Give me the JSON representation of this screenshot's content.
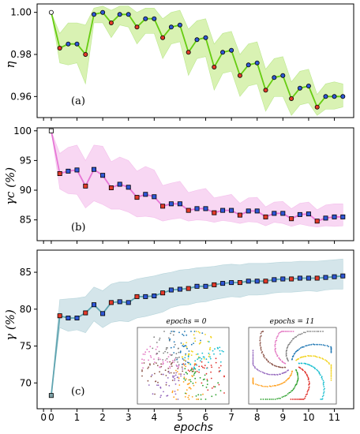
{
  "x_axis": {
    "label": "epochs",
    "ticks": [
      "0",
      "0",
      "1",
      "2",
      "3",
      "4",
      "5",
      "6",
      "7",
      "8",
      "9",
      "10",
      "11"
    ],
    "tick_values": [
      -0.3,
      0,
      1,
      2,
      3,
      4,
      5,
      6,
      7,
      8,
      9,
      10,
      11
    ]
  },
  "colors": {
    "panel_a_line": "#66cc11",
    "panel_a_band": "#d9f2b3",
    "panel_b_line": "#e777d6",
    "panel_b_band": "#f8d7f3",
    "panel_c_line": "#5fa4b0",
    "panel_c_band": "#d4e5ea",
    "marker_red": "#e33a2a",
    "marker_blue": "#2f57d6"
  },
  "chart_data": [
    {
      "type": "line",
      "panel_label": "(a)",
      "ylabel": "η",
      "ylim": [
        0.95,
        1.004
      ],
      "yticks": [
        "0.96",
        "0.98",
        "1.00"
      ],
      "ytick_values": [
        0.96,
        0.98,
        1.0
      ],
      "x": [
        0,
        0.33,
        0.66,
        1.0,
        1.33,
        1.66,
        2.0,
        2.33,
        2.66,
        3.0,
        3.33,
        3.66,
        4.0,
        4.33,
        4.66,
        5.0,
        5.33,
        5.66,
        6.0,
        6.33,
        6.66,
        7.0,
        7.33,
        7.66,
        8.0,
        8.33,
        8.66,
        9.0,
        9.33,
        9.66,
        10.0,
        10.33,
        10.66,
        11.0,
        11.33
      ],
      "series": [
        {
          "values": [
            1.0,
            0.983,
            0.985,
            0.985,
            0.98,
            0.999,
            1.0,
            0.995,
            0.999,
            0.999,
            0.993,
            0.997,
            0.997,
            0.988,
            0.993,
            0.994,
            0.981,
            0.987,
            0.988,
            0.974,
            0.981,
            0.982,
            0.97,
            0.975,
            0.976,
            0.963,
            0.969,
            0.97,
            0.959,
            0.964,
            0.965,
            0.955,
            0.96,
            0.96,
            0.96
          ],
          "low": [
            1.0,
            0.976,
            0.975,
            0.976,
            0.966,
            0.995,
            0.995,
            0.988,
            0.994,
            0.993,
            0.985,
            0.99,
            0.99,
            0.978,
            0.985,
            0.986,
            0.97,
            0.978,
            0.979,
            0.963,
            0.971,
            0.972,
            0.96,
            0.965,
            0.966,
            0.953,
            0.96,
            0.96,
            0.951,
            0.956,
            0.957,
            0.951,
            0.954,
            0.954,
            0.955
          ],
          "high": [
            1.0,
            0.99,
            0.995,
            0.995,
            0.994,
            1.002,
            1.003,
            1.001,
            1.003,
            1.003,
            1.0,
            1.002,
            1.002,
            0.997,
            1.0,
            1.001,
            0.992,
            0.996,
            0.997,
            0.985,
            0.99,
            0.991,
            0.98,
            0.985,
            0.986,
            0.973,
            0.978,
            0.979,
            0.967,
            0.972,
            0.973,
            0.961,
            0.966,
            0.967,
            0.966
          ],
          "marker_kinds": [
            "w",
            "r",
            "b",
            "b",
            "r",
            "b",
            "b",
            "r",
            "b",
            "b",
            "r",
            "b",
            "b",
            "r",
            "b",
            "b",
            "r",
            "b",
            "b",
            "r",
            "b",
            "b",
            "r",
            "b",
            "b",
            "r",
            "b",
            "b",
            "r",
            "b",
            "b",
            "r",
            "b",
            "b",
            "b"
          ]
        }
      ]
    },
    {
      "type": "line",
      "panel_label": "(b)",
      "ylabel": "γc (%)",
      "ylim": [
        81.5,
        100.5
      ],
      "yticks": [
        "85",
        "90",
        "95",
        "100"
      ],
      "ytick_values": [
        85,
        90,
        95,
        100
      ],
      "x": [
        0,
        0.33,
        0.66,
        1.0,
        1.33,
        1.66,
        2.0,
        2.33,
        2.66,
        3.0,
        3.33,
        3.66,
        4.0,
        4.33,
        4.66,
        5.0,
        5.33,
        5.66,
        6.0,
        6.33,
        6.66,
        7.0,
        7.33,
        7.66,
        8.0,
        8.33,
        8.66,
        9.0,
        9.33,
        9.66,
        10.0,
        10.33,
        10.66,
        11.0,
        11.33
      ],
      "series": [
        {
          "values": [
            100.0,
            92.8,
            93.2,
            93.4,
            90.7,
            93.5,
            92.5,
            90.4,
            91.0,
            90.5,
            88.8,
            89.3,
            88.9,
            87.3,
            87.7,
            87.7,
            86.6,
            86.9,
            86.9,
            86.2,
            86.6,
            86.6,
            85.8,
            86.5,
            86.5,
            85.5,
            86.1,
            86.1,
            85.2,
            85.9,
            86.0,
            84.8,
            85.3,
            85.5,
            85.5
          ],
          "low": [
            100.0,
            90.2,
            89.4,
            89.3,
            87.0,
            88.2,
            87.6,
            86.8,
            86.8,
            86.3,
            85.5,
            85.6,
            85.4,
            84.8,
            85.1,
            85.3,
            84.8,
            85.0,
            84.9,
            84.6,
            84.9,
            84.7,
            84.4,
            84.7,
            84.6,
            84.0,
            84.6,
            84.4,
            83.9,
            84.3,
            84.0,
            83.8,
            84.0,
            83.9,
            84.0
          ],
          "high": [
            100.0,
            96.2,
            97.2,
            97.6,
            95.0,
            97.6,
            97.4,
            94.8,
            95.6,
            95.0,
            93.2,
            94.0,
            93.4,
            90.8,
            91.2,
            91.5,
            89.6,
            90.0,
            90.3,
            88.7,
            89.0,
            89.3,
            87.8,
            88.7,
            88.8,
            87.2,
            88.0,
            88.1,
            86.9,
            87.8,
            88.0,
            86.7,
            87.5,
            87.7,
            87.7
          ],
          "marker_kinds": [
            "w",
            "r",
            "b",
            "b",
            "r",
            "b",
            "b",
            "r",
            "b",
            "b",
            "r",
            "b",
            "b",
            "r",
            "b",
            "b",
            "r",
            "b",
            "b",
            "r",
            "b",
            "b",
            "r",
            "b",
            "b",
            "r",
            "b",
            "b",
            "r",
            "b",
            "b",
            "r",
            "b",
            "b",
            "b"
          ]
        }
      ]
    },
    {
      "type": "line",
      "panel_label": "(c)",
      "ylabel": "γ (%)",
      "ylim": [
        66.5,
        88
      ],
      "yticks": [
        "70",
        "75",
        "80",
        "85"
      ],
      "ytick_values": [
        70,
        75,
        80,
        85
      ],
      "x": [
        0,
        0.33,
        0.66,
        1.0,
        1.33,
        1.66,
        2.0,
        2.33,
        2.66,
        3.0,
        3.33,
        3.66,
        4.0,
        4.33,
        4.66,
        5.0,
        5.33,
        5.66,
        6.0,
        6.33,
        6.66,
        7.0,
        7.33,
        7.66,
        8.0,
        8.33,
        8.66,
        9.0,
        9.33,
        9.66,
        10.0,
        10.33,
        10.66,
        11.0,
        11.33
      ],
      "series": [
        {
          "values": [
            68.3,
            79.1,
            78.8,
            78.8,
            79.5,
            80.6,
            79.4,
            80.9,
            81.0,
            80.9,
            81.7,
            81.7,
            81.8,
            82.2,
            82.6,
            82.7,
            82.8,
            83.1,
            83.1,
            83.3,
            83.5,
            83.6,
            83.6,
            83.8,
            83.8,
            83.8,
            84.0,
            84.1,
            84.1,
            84.2,
            84.2,
            84.2,
            84.3,
            84.4,
            84.5
          ],
          "low": [
            68.3,
            77.5,
            77.0,
            77.2,
            76.8,
            78.4,
            77.5,
            78.2,
            78.4,
            78.3,
            78.8,
            79.0,
            79.3,
            79.6,
            80.2,
            80.5,
            80.6,
            80.9,
            81.0,
            81.3,
            81.5,
            81.7,
            81.6,
            81.9,
            81.9,
            82.0,
            82.2,
            82.3,
            82.3,
            82.4,
            82.5,
            82.4,
            82.6,
            82.7,
            82.7
          ],
          "high": [
            68.3,
            81.3,
            81.4,
            81.5,
            81.7,
            83.0,
            82.5,
            83.4,
            83.7,
            83.7,
            84.1,
            84.3,
            84.5,
            84.8,
            85.0,
            85.3,
            85.4,
            85.6,
            85.7,
            85.8,
            86.0,
            86.1,
            86.0,
            86.2,
            86.2,
            86.2,
            86.3,
            86.4,
            86.4,
            86.5,
            86.5,
            86.5,
            86.6,
            86.7,
            86.8
          ],
          "marker_kinds": [
            "g",
            "r",
            "b",
            "b",
            "r",
            "b",
            "b",
            "r",
            "b",
            "b",
            "r",
            "b",
            "b",
            "r",
            "b",
            "b",
            "r",
            "b",
            "b",
            "r",
            "b",
            "b",
            "r",
            "b",
            "b",
            "r",
            "b",
            "b",
            "r",
            "b",
            "b",
            "r",
            "b",
            "b",
            "b"
          ]
        }
      ],
      "insets": [
        {
          "title": "epochs = 0"
        },
        {
          "title": "epochs = 11"
        }
      ]
    }
  ]
}
